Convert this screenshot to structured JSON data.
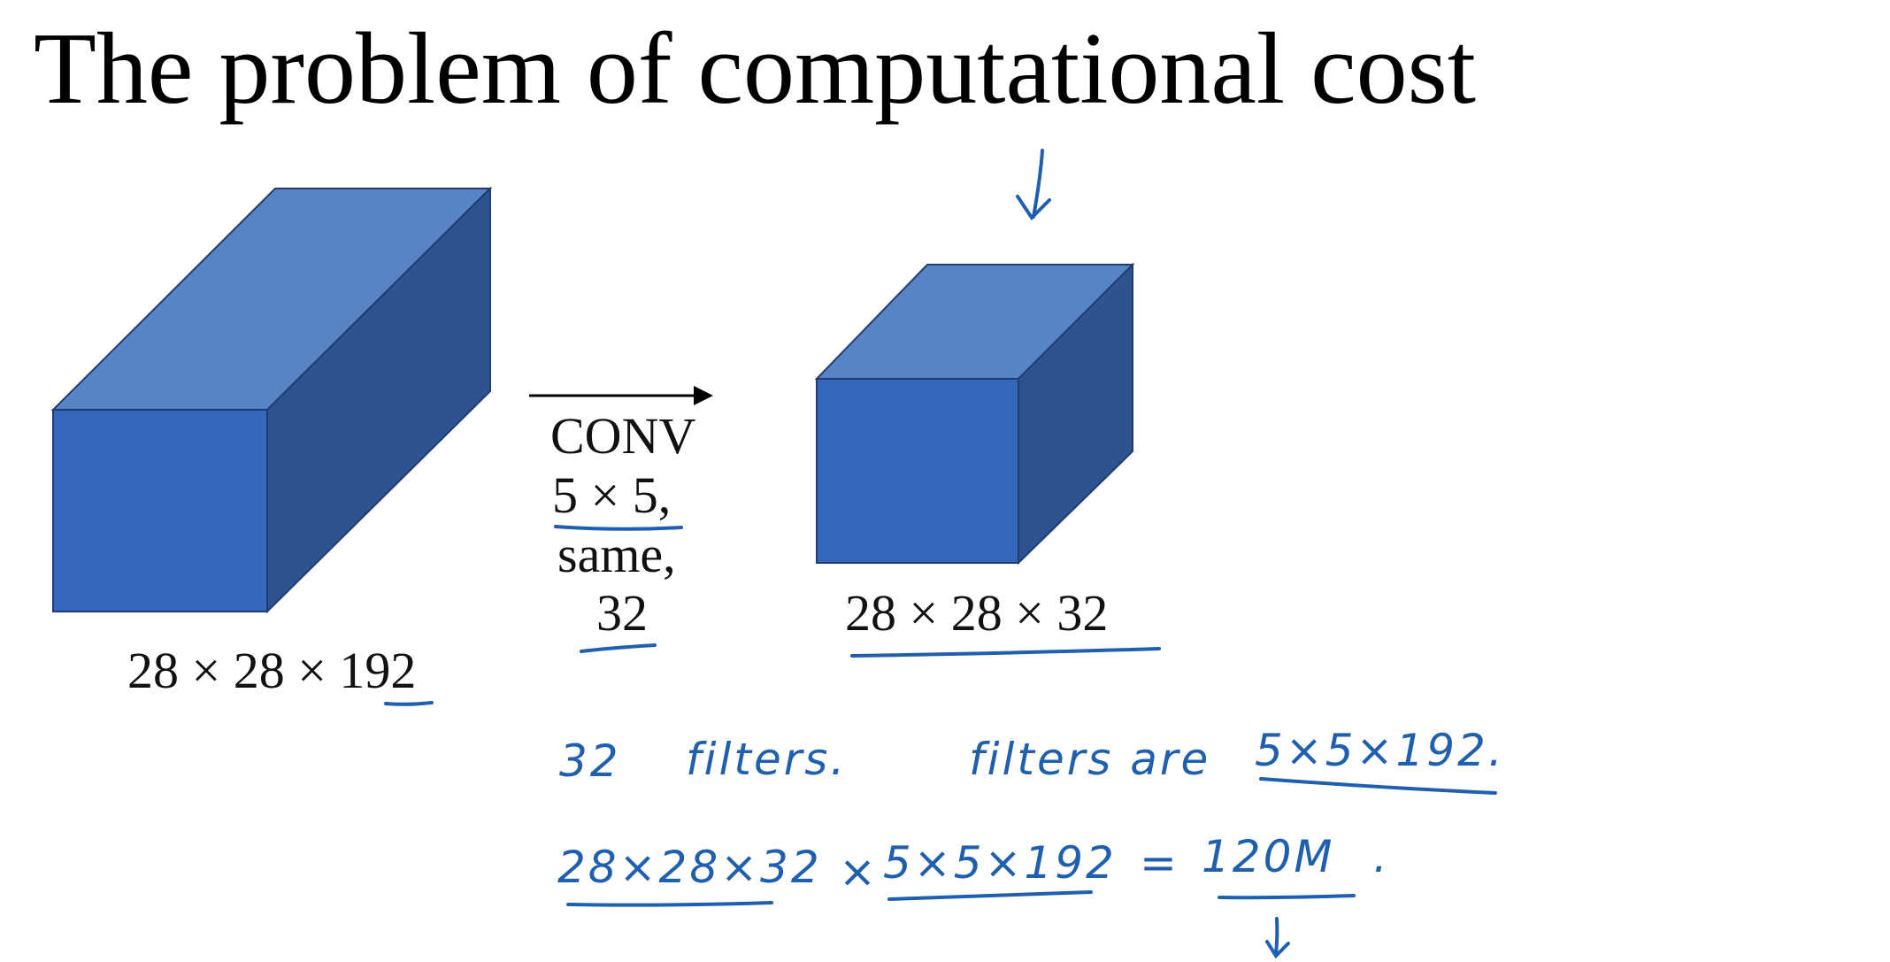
{
  "slide": {
    "title": "The problem of computational cost"
  },
  "input_volume": {
    "label": "28 × 28 × 192"
  },
  "conv_op": {
    "line1": "CONV",
    "line2": "5 × 5,",
    "line3": "same,",
    "line4": "32"
  },
  "output_volume": {
    "label": "28 × 28 × 32"
  },
  "handwriting": {
    "filters_count": "32",
    "filters_word": "filters.",
    "filters_are": "filters are",
    "filter_size": "5×5×192.",
    "output_term": "28×28×32",
    "times": "×",
    "filter_term": "5×5×192",
    "equals": "=",
    "result": "120M",
    "period": "."
  },
  "colors": {
    "cube_front": "#3567bb",
    "cube_top": "#5884c6",
    "cube_side": "#2d5491",
    "cube_edge": "#1f3d73",
    "ink": "#1f5fb0"
  }
}
